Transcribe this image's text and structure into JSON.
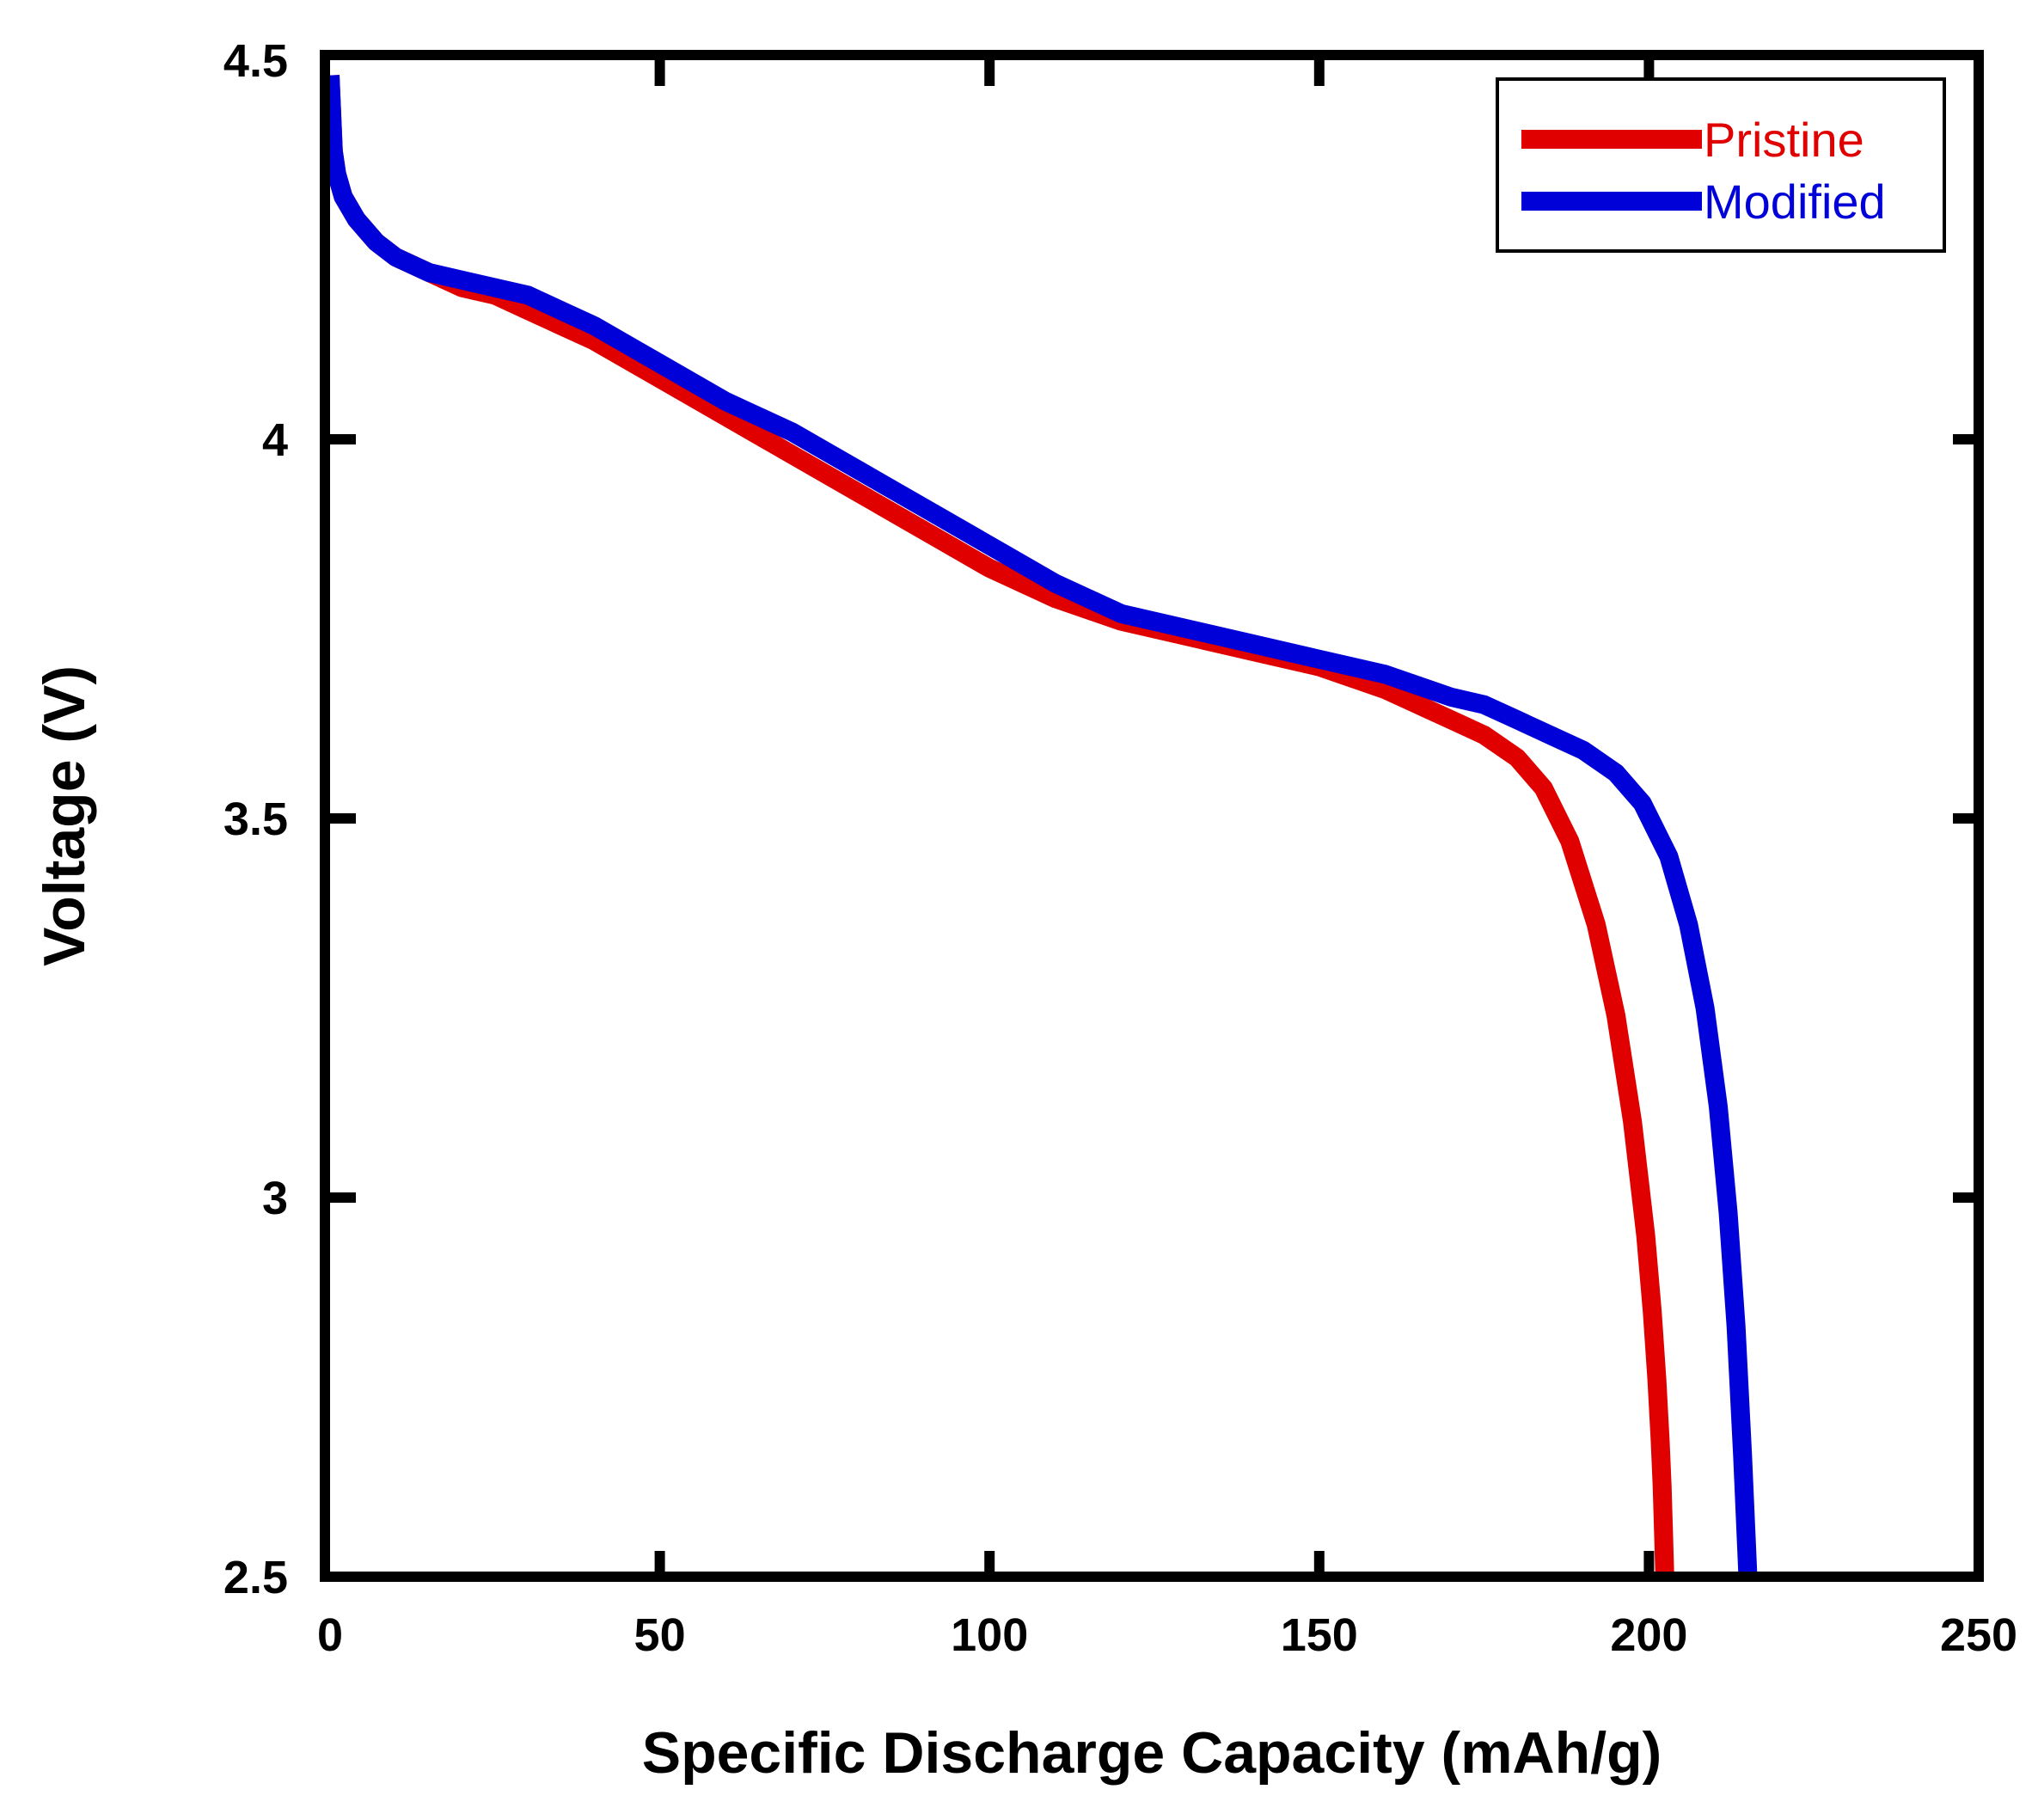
{
  "chart_data": {
    "type": "line",
    "title": "",
    "xlabel": "Specific Discharge Capacity (mAh/g)",
    "ylabel": "Voltage (V)",
    "xlim": [
      0,
      250
    ],
    "ylim": [
      2.5,
      4.5
    ],
    "x_ticks": [
      0,
      50,
      100,
      150,
      200,
      250
    ],
    "x_tick_labels": [
      "0",
      "50",
      "100",
      "150",
      "200",
      "250"
    ],
    "y_ticks": [
      2.5,
      3,
      3.5,
      4,
      4.5
    ],
    "y_tick_labels": [
      "2.5",
      "3",
      "3.5",
      "4",
      "4.5"
    ],
    "grid": false,
    "legend_position": "top-right",
    "series": [
      {
        "name": "Pristine",
        "color": "#e00000",
        "x": [
          0,
          0.5,
          1,
          2,
          4,
          7,
          10,
          15,
          20,
          25,
          30,
          35,
          40,
          50,
          60,
          70,
          80,
          90,
          100,
          110,
          120,
          130,
          140,
          150,
          160,
          170,
          175,
          180,
          184,
          188,
          192,
          195,
          197.5,
          199.5,
          200.5,
          201.2,
          201.7,
          202,
          202.2,
          202.4
        ],
        "values": [
          4.48,
          4.38,
          4.35,
          4.32,
          4.29,
          4.26,
          4.24,
          4.22,
          4.2,
          4.19,
          4.17,
          4.15,
          4.13,
          4.08,
          4.03,
          3.98,
          3.93,
          3.88,
          3.83,
          3.79,
          3.76,
          3.74,
          3.72,
          3.7,
          3.67,
          3.63,
          3.61,
          3.58,
          3.54,
          3.47,
          3.36,
          3.24,
          3.1,
          2.95,
          2.85,
          2.76,
          2.68,
          2.62,
          2.56,
          2.5
        ]
      },
      {
        "name": "Modified",
        "color": "#0000d8",
        "x": [
          0,
          0.5,
          1,
          2,
          4,
          7,
          10,
          15,
          20,
          25,
          30,
          35,
          40,
          50,
          60,
          70,
          80,
          90,
          100,
          110,
          120,
          130,
          140,
          150,
          160,
          170,
          175,
          180,
          185,
          190,
          195,
          199,
          203,
          206,
          208.5,
          210.5,
          212,
          213.2,
          214.2,
          215
        ],
        "values": [
          4.48,
          4.38,
          4.35,
          4.32,
          4.29,
          4.26,
          4.24,
          4.22,
          4.21,
          4.2,
          4.19,
          4.17,
          4.15,
          4.1,
          4.05,
          4.01,
          3.96,
          3.91,
          3.86,
          3.81,
          3.77,
          3.75,
          3.73,
          3.71,
          3.69,
          3.66,
          3.65,
          3.63,
          3.61,
          3.59,
          3.56,
          3.52,
          3.45,
          3.36,
          3.25,
          3.12,
          2.98,
          2.83,
          2.66,
          2.5
        ]
      }
    ]
  }
}
